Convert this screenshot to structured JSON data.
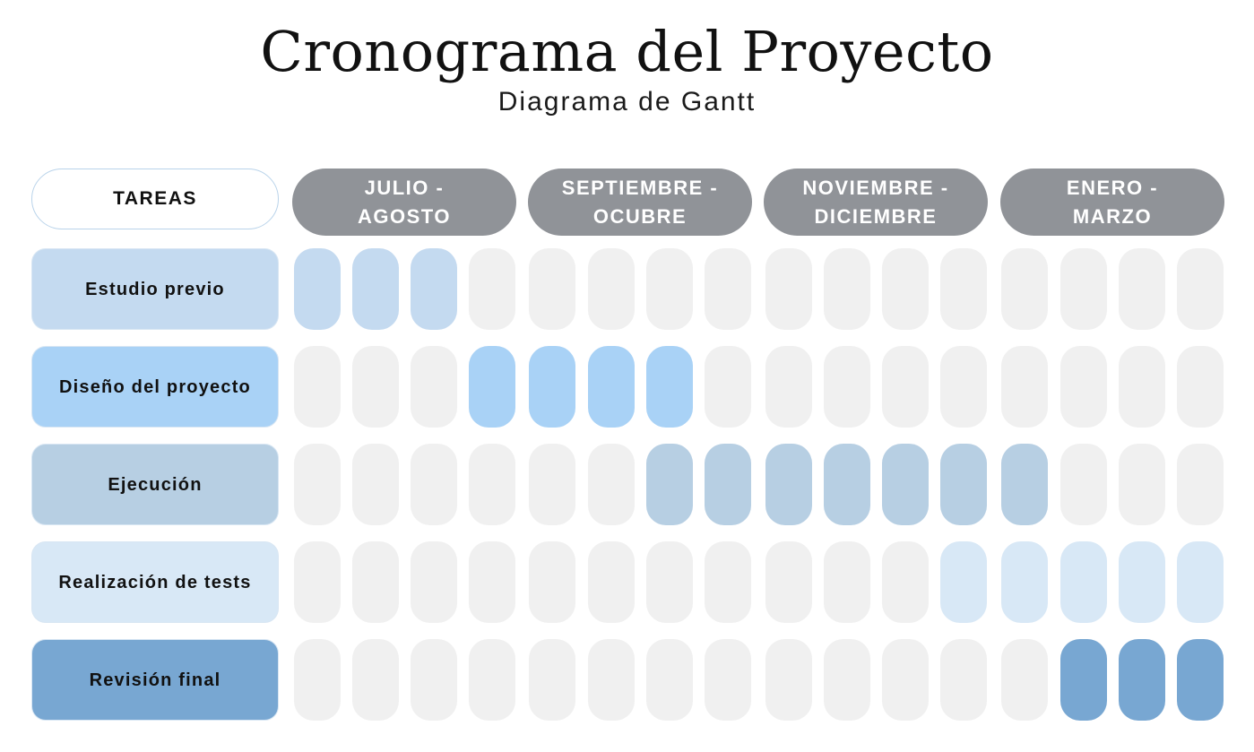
{
  "title": "Cronograma del Proyecto",
  "subtitle": "Diagrama de Gantt",
  "tasks_header": "TAREAS",
  "chart_data": {
    "type": "gantt",
    "title": "Cronograma del Proyecto",
    "subtitle": "Diagrama de Gantt",
    "periods": [
      {
        "line1": "JULIO -",
        "line2": "AGOSTO",
        "slots": 4
      },
      {
        "line1": "SEPTIEMBRE -",
        "line2": "OCUBRE",
        "slots": 4
      },
      {
        "line1": "NOVIEMBRE -",
        "line2": "DICIEMBRE",
        "slots": 4
      },
      {
        "line1": "ENERO -",
        "line2": "MARZO",
        "slots": 4
      }
    ],
    "total_slots": 16,
    "empty_color": "#f0f0f0",
    "tasks": [
      {
        "name": "Estudio previo",
        "start": 0,
        "end": 2,
        "color": "#c4daf0"
      },
      {
        "name": "Diseño del proyecto",
        "start": 3,
        "end": 6,
        "color": "#a9d2f6"
      },
      {
        "name": "Ejecución",
        "start": 6,
        "end": 12,
        "color": "#b7cfe3"
      },
      {
        "name": "Realización de tests",
        "start": 11,
        "end": 15,
        "color": "#d8e8f6"
      },
      {
        "name": "Revisión final",
        "start": 13,
        "end": 15,
        "color": "#78a7d2"
      }
    ]
  }
}
